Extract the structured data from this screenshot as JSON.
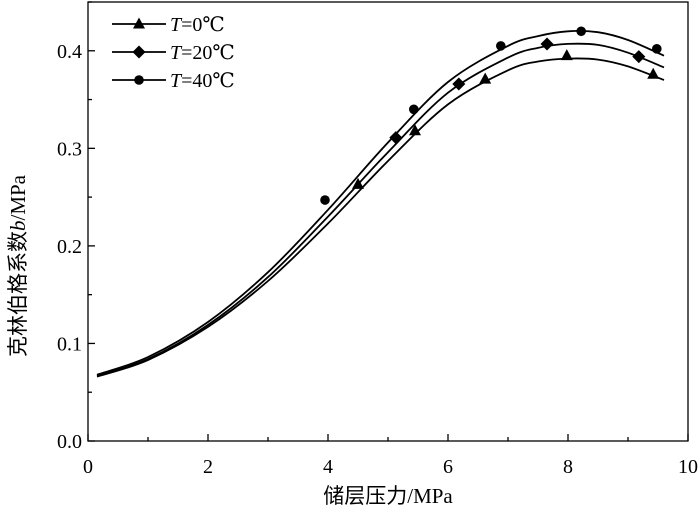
{
  "chart_data": {
    "type": "line",
    "xlabel": "储层压力/MPa",
    "ylabel": "克林伯格系数b/MPa",
    "ylabel_prefix": "克林伯格系数",
    "ylabel_var": "b",
    "ylabel_unit": "/MPa",
    "xlim": [
      0,
      10
    ],
    "ylim": [
      0,
      0.45
    ],
    "x_ticks": [
      "0",
      "2",
      "4",
      "6",
      "8",
      "10"
    ],
    "y_ticks": [
      "0.0",
      "0.1",
      "0.2",
      "0.3",
      "0.4"
    ],
    "grid": false,
    "legend_position": "top-left",
    "series": [
      {
        "name": "T=0℃",
        "label_var": "T",
        "label_rest": "=0℃",
        "marker": "triangle",
        "points": [
          [
            4.5,
            0.263
          ],
          [
            5.45,
            0.318
          ],
          [
            6.62,
            0.371
          ],
          [
            7.98,
            0.395
          ],
          [
            9.42,
            0.376
          ]
        ],
        "curve": [
          [
            0.15,
            0.066
          ],
          [
            1.0,
            0.083
          ],
          [
            2.0,
            0.117
          ],
          [
            3.0,
            0.164
          ],
          [
            4.0,
            0.223
          ],
          [
            5.0,
            0.287
          ],
          [
            6.0,
            0.345
          ],
          [
            7.0,
            0.38
          ],
          [
            7.5,
            0.389
          ],
          [
            8.0,
            0.392
          ],
          [
            8.5,
            0.391
          ],
          [
            9.0,
            0.384
          ],
          [
            9.6,
            0.37
          ]
        ]
      },
      {
        "name": "T=20℃",
        "label_var": "T",
        "label_rest": "=20℃",
        "marker": "diamond",
        "points": [
          [
            5.13,
            0.311
          ],
          [
            6.18,
            0.366
          ],
          [
            7.65,
            0.407
          ],
          [
            9.18,
            0.394
          ]
        ],
        "curve": [
          [
            0.15,
            0.067
          ],
          [
            1.0,
            0.084
          ],
          [
            2.0,
            0.119
          ],
          [
            3.0,
            0.168
          ],
          [
            4.0,
            0.23
          ],
          [
            5.0,
            0.296
          ],
          [
            6.0,
            0.357
          ],
          [
            7.0,
            0.393
          ],
          [
            7.5,
            0.403
          ],
          [
            8.0,
            0.407
          ],
          [
            8.5,
            0.406
          ],
          [
            9.0,
            0.398
          ],
          [
            9.6,
            0.383
          ]
        ]
      },
      {
        "name": "T=40℃",
        "label_var": "T",
        "label_rest": "=40℃",
        "marker": "circle",
        "points": [
          [
            3.95,
            0.247
          ],
          [
            5.43,
            0.34
          ],
          [
            6.88,
            0.405
          ],
          [
            8.22,
            0.42
          ],
          [
            9.48,
            0.402
          ]
        ],
        "curve": [
          [
            0.15,
            0.068
          ],
          [
            1.0,
            0.086
          ],
          [
            2.0,
            0.122
          ],
          [
            3.0,
            0.173
          ],
          [
            4.0,
            0.237
          ],
          [
            5.0,
            0.306
          ],
          [
            6.0,
            0.368
          ],
          [
            7.0,
            0.405
          ],
          [
            7.5,
            0.415
          ],
          [
            8.0,
            0.42
          ],
          [
            8.5,
            0.419
          ],
          [
            9.0,
            0.411
          ],
          [
            9.6,
            0.395
          ]
        ]
      }
    ]
  }
}
